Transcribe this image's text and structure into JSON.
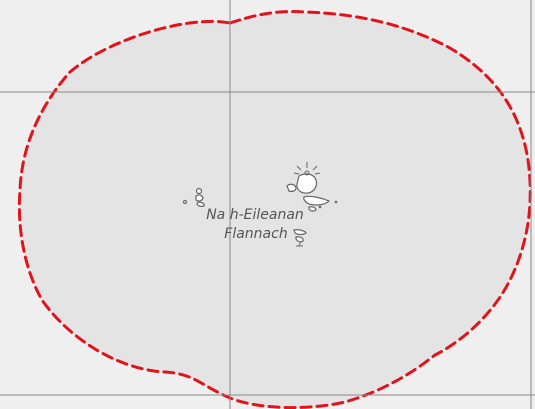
{
  "map": {
    "label_line1": "Na h-Eileanan",
    "label_line2": "Flannach",
    "colors": {
      "background": "#efefef",
      "area_fill": "#e4e4e4",
      "boundary": "#e0141c",
      "grid": "#8a8a8a",
      "islands": "#666666"
    },
    "icons": [
      "lighthouse-icon",
      "beacon-icon"
    ]
  }
}
